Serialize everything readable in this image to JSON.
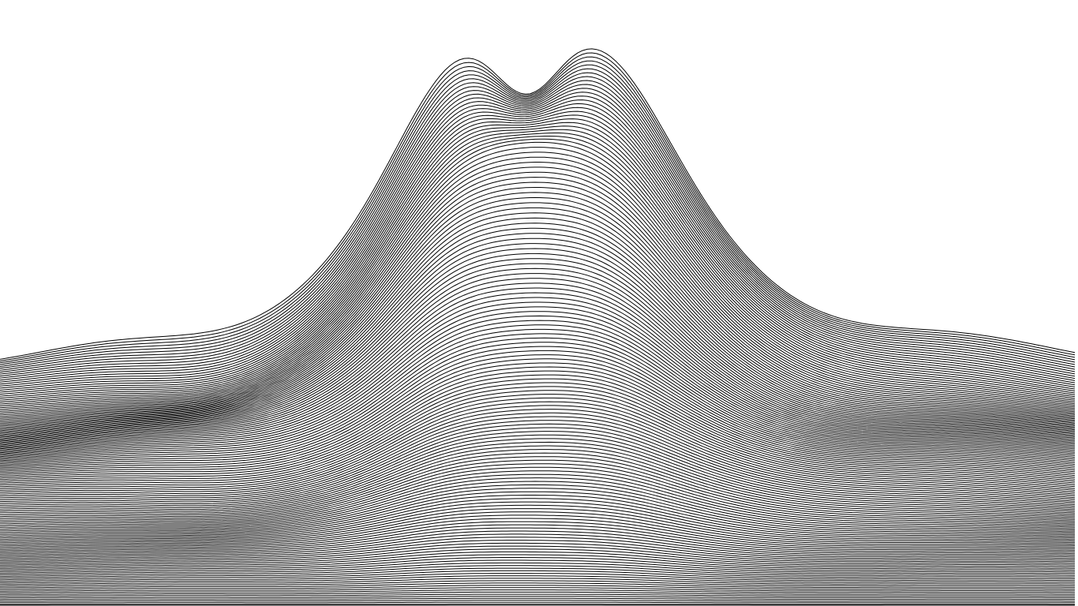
{
  "artwork": {
    "line_color": "#000000",
    "background_color": "#ffffff",
    "style": "stacked contour lines forming a twin-peaked terrain surface"
  }
}
